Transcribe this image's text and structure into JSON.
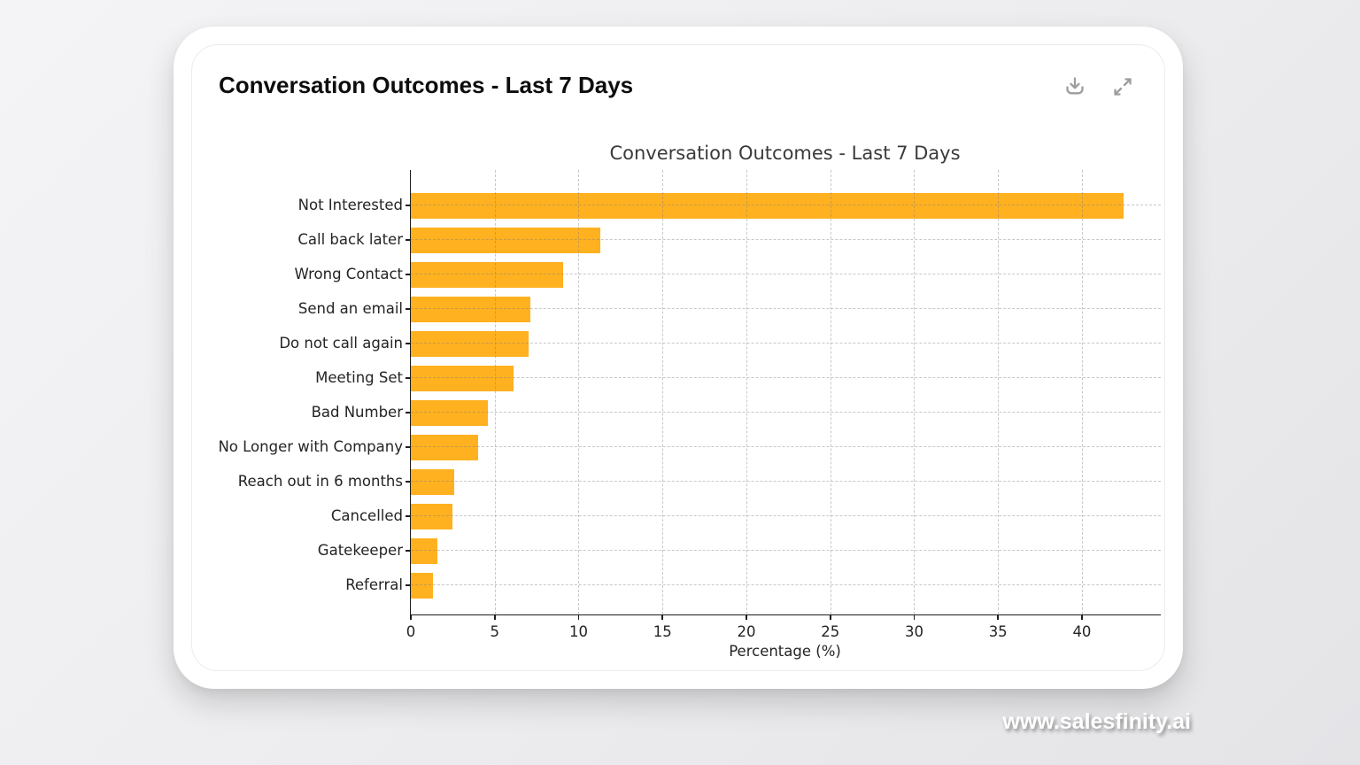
{
  "card": {
    "title": "Conversation Outcomes - Last 7 Days",
    "actions": [
      {
        "icon": "download-icon"
      },
      {
        "icon": "expand-icon"
      }
    ]
  },
  "watermark": "www.salesfinity.ai",
  "colors": {
    "bar": "#FFB120",
    "card_background": "#ffffff",
    "page_background": "#ededef",
    "icon_gray": "#9d9d9d"
  },
  "chart_data": {
    "type": "bar",
    "orientation": "horizontal",
    "title": "Conversation Outcomes - Last 7 Days",
    "xlabel": "Percentage (%)",
    "ylabel": "",
    "categories": [
      "Not Interested",
      "Call back later",
      "Wrong Contact",
      "Send an email",
      "Do not call again",
      "Meeting Set",
      "Bad Number",
      "No Longer with Company",
      "Reach out in 6 months",
      "Cancelled",
      "Gatekeeper",
      "Referral"
    ],
    "values": [
      42.5,
      11.3,
      9.1,
      7.1,
      7.0,
      6.1,
      4.6,
      4.0,
      2.6,
      2.5,
      1.6,
      1.3
    ],
    "x_ticks": [
      0,
      5,
      10,
      15,
      20,
      25,
      30,
      35,
      40
    ],
    "xlim": [
      0,
      44.7
    ],
    "grid": true,
    "grid_style": "dashed",
    "bar_color": "#FFB120",
    "legend": "none"
  }
}
